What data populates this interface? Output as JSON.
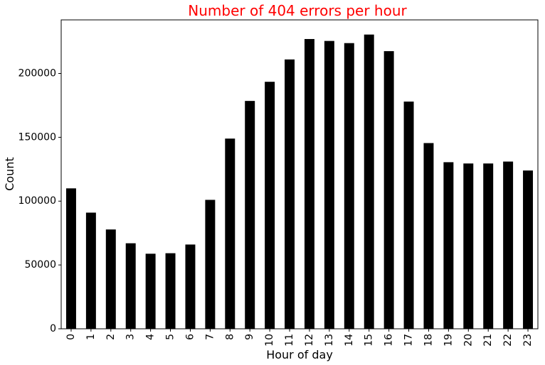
{
  "chart_data": {
    "type": "bar",
    "title": "Number of 404 errors per hour",
    "xlabel": "Hour of day",
    "ylabel": "Count",
    "categories": [
      "0",
      "1",
      "2",
      "3",
      "4",
      "5",
      "6",
      "7",
      "8",
      "9",
      "10",
      "11",
      "12",
      "13",
      "14",
      "15",
      "16",
      "17",
      "18",
      "19",
      "20",
      "21",
      "22",
      "23"
    ],
    "values": [
      110000,
      91000,
      77800,
      67000,
      58800,
      59200,
      66000,
      101000,
      149000,
      178500,
      193500,
      211000,
      227000,
      225500,
      223800,
      230500,
      217500,
      178000,
      145500,
      130500,
      129500,
      129500,
      131000,
      124000
    ],
    "ylim": [
      0,
      242000
    ],
    "yticks": [
      0,
      50000,
      100000,
      150000,
      200000
    ],
    "grid": false,
    "legend": "none",
    "bar_color": "#000000",
    "title_color": "#ff0000"
  }
}
